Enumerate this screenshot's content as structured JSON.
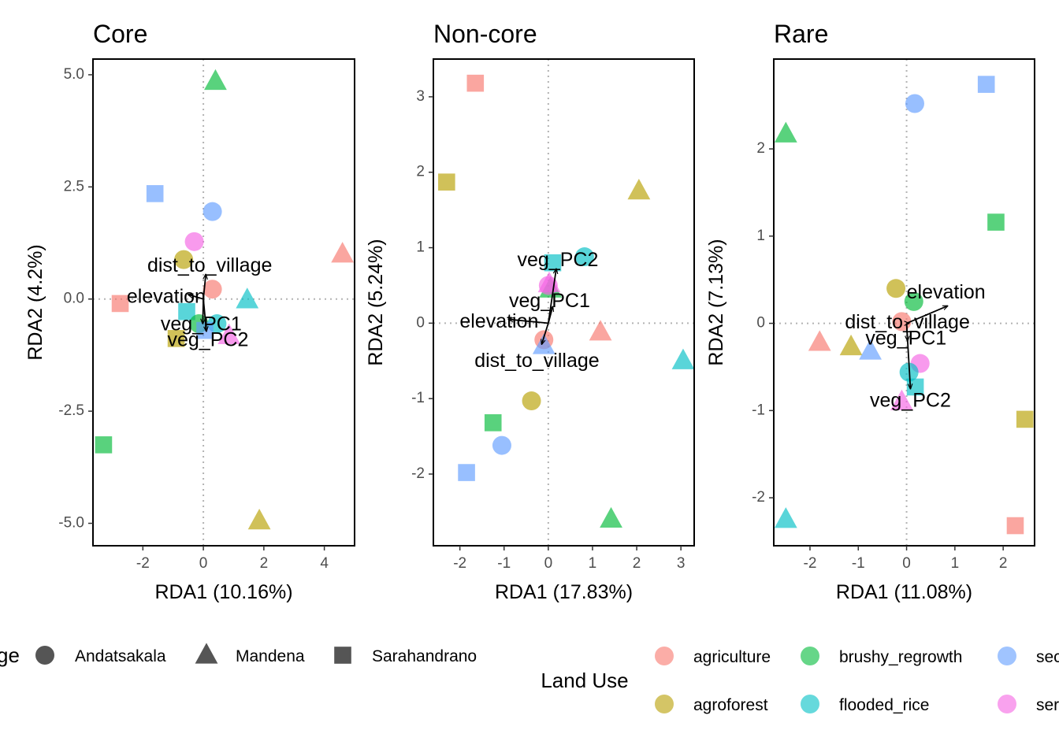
{
  "chart_data": [
    {
      "type": "scatter",
      "title": "Core",
      "xlabel": "RDA1 (10.16%)",
      "ylabel": "RDA2 (4.2%)",
      "xlim": [
        -3.65,
        5.0
      ],
      "ylim": [
        -5.5,
        5.35
      ],
      "xticks": [
        -2,
        0,
        2,
        4
      ],
      "xtick_labels": [
        "-2",
        "0",
        "2",
        "4"
      ],
      "yticks": [
        -5,
        -2.5,
        0,
        2.5,
        5
      ],
      "ytick_labels": [
        "-5.0",
        "-2.5",
        "0.0",
        "2.5",
        "5.0"
      ],
      "grid": false,
      "points": [
        {
          "x": 0.4,
          "y": 4.85,
          "site": "Mandena",
          "land_use": "brushy_regrowth"
        },
        {
          "x": 4.6,
          "y": 1.0,
          "site": "Mandena",
          "land_use": "agriculture"
        },
        {
          "x": -1.6,
          "y": 2.35,
          "site": "Sarahandrano",
          "land_use": "secondary_forest"
        },
        {
          "x": 0.3,
          "y": 1.95,
          "site": "Andatsakala",
          "land_use": "secondary_forest"
        },
        {
          "x": -0.3,
          "y": 1.28,
          "site": "Andatsakala",
          "land_use": "semi_intact"
        },
        {
          "x": -0.65,
          "y": 0.88,
          "site": "Andatsakala",
          "land_use": "agroforest"
        },
        {
          "x": 0.3,
          "y": 0.22,
          "site": "Andatsakala",
          "land_use": "agriculture"
        },
        {
          "x": -2.75,
          "y": -0.1,
          "site": "Sarahandrano",
          "land_use": "agriculture"
        },
        {
          "x": 1.45,
          "y": -0.02,
          "site": "Mandena",
          "land_use": "flooded_rice"
        },
        {
          "x": -0.55,
          "y": -0.28,
          "site": "Sarahandrano",
          "land_use": "flooded_rice"
        },
        {
          "x": -0.15,
          "y": -0.55,
          "site": "Andatsakala",
          "land_use": "brushy_regrowth"
        },
        {
          "x": 0.45,
          "y": -0.55,
          "site": "Andatsakala",
          "land_use": "flooded_rice"
        },
        {
          "x": 0.05,
          "y": -0.7,
          "site": "Sarahandrano",
          "land_use": "secondary_forest"
        },
        {
          "x": 0.85,
          "y": -0.82,
          "site": "Mandena",
          "land_use": "semi_intact"
        },
        {
          "x": -0.9,
          "y": -0.88,
          "site": "Sarahandrano",
          "land_use": "agroforest"
        },
        {
          "x": -3.3,
          "y": -3.25,
          "site": "Sarahandrano",
          "land_use": "brushy_regrowth"
        },
        {
          "x": 1.85,
          "y": -4.95,
          "site": "Mandena",
          "land_use": "agroforest"
        }
      ],
      "vectors": [
        {
          "label": "dist_to_village",
          "x": 0.08,
          "y": 0.55
        },
        {
          "label": "elevation",
          "x": -0.5,
          "y": 0.1
        },
        {
          "label": "veg_PC1",
          "x": -0.02,
          "y": -0.55
        },
        {
          "label": "veg_PC2",
          "x": 0.1,
          "y": -0.72
        }
      ]
    },
    {
      "type": "scatter",
      "title": "Non-core",
      "xlabel": "RDA1 (17.83%)",
      "ylabel": "RDA2 (5.24%)",
      "xlim": [
        -2.6,
        3.3
      ],
      "ylim": [
        -2.95,
        3.5
      ],
      "xticks": [
        -2,
        -1,
        0,
        1,
        2,
        3
      ],
      "xtick_labels": [
        "-2",
        "-1",
        "0",
        "1",
        "2",
        "3"
      ],
      "yticks": [
        -2,
        -1,
        0,
        1,
        2,
        3
      ],
      "ytick_labels": [
        "-2",
        "-1",
        "0",
        "1",
        "2",
        "3"
      ],
      "grid": false,
      "points": [
        {
          "x": -1.65,
          "y": 3.18,
          "site": "Sarahandrano",
          "land_use": "agriculture"
        },
        {
          "x": -2.3,
          "y": 1.87,
          "site": "Sarahandrano",
          "land_use": "agroforest"
        },
        {
          "x": 2.05,
          "y": 1.75,
          "site": "Mandena",
          "land_use": "agroforest"
        },
        {
          "x": 0.82,
          "y": 0.88,
          "site": "Andatsakala",
          "land_use": "flooded_rice"
        },
        {
          "x": 0.1,
          "y": 0.8,
          "site": "Sarahandrano",
          "land_use": "flooded_rice"
        },
        {
          "x": 0.05,
          "y": 0.45,
          "site": "Mandena",
          "land_use": "brushy_regrowth"
        },
        {
          "x": 0.0,
          "y": 0.5,
          "site": "Andatsakala",
          "land_use": "semi_intact"
        },
        {
          "x": 0.02,
          "y": 0.52,
          "site": "Mandena",
          "land_use": "semi_intact"
        },
        {
          "x": 1.18,
          "y": -0.12,
          "site": "Mandena",
          "land_use": "agriculture"
        },
        {
          "x": -0.1,
          "y": -0.22,
          "site": "Andatsakala",
          "land_use": "agriculture"
        },
        {
          "x": -0.1,
          "y": -0.3,
          "site": "Mandena",
          "land_use": "secondary_forest"
        },
        {
          "x": 3.05,
          "y": -0.5,
          "site": "Mandena",
          "land_use": "flooded_rice"
        },
        {
          "x": -0.38,
          "y": -1.03,
          "site": "Andatsakala",
          "land_use": "agroforest"
        },
        {
          "x": -1.25,
          "y": -1.32,
          "site": "Sarahandrano",
          "land_use": "brushy_regrowth"
        },
        {
          "x": -1.05,
          "y": -1.62,
          "site": "Andatsakala",
          "land_use": "secondary_forest"
        },
        {
          "x": -1.85,
          "y": -1.98,
          "site": "Sarahandrano",
          "land_use": "secondary_forest"
        },
        {
          "x": 1.42,
          "y": -2.6,
          "site": "Mandena",
          "land_use": "brushy_regrowth"
        }
      ],
      "vectors": [
        {
          "label": "veg_PC2",
          "x": 0.18,
          "y": 0.72
        },
        {
          "label": "veg_PC1",
          "x": 0.1,
          "y": 0.22
        },
        {
          "label": "elevation",
          "x": -0.9,
          "y": 0.05
        },
        {
          "label": "dist_to_village",
          "x": -0.15,
          "y": -0.28
        }
      ]
    },
    {
      "type": "scatter",
      "title": "Rare",
      "xlabel": "RDA1 (11.08%)",
      "ylabel": "RDA2 (7.13%)",
      "xlim": [
        -2.75,
        2.65
      ],
      "ylim": [
        -2.55,
        3.03
      ],
      "xticks": [
        -2,
        -1,
        0,
        1,
        2
      ],
      "xtick_labels": [
        "-2",
        "-1",
        "0",
        "1",
        "2"
      ],
      "yticks": [
        -2,
        -1,
        0,
        1,
        2
      ],
      "ytick_labels": [
        "-2",
        "-1",
        "0",
        "1",
        "2"
      ],
      "grid": false,
      "points": [
        {
          "x": 0.17,
          "y": 2.52,
          "site": "Andatsakala",
          "land_use": "secondary_forest"
        },
        {
          "x": 1.65,
          "y": 2.74,
          "site": "Sarahandrano",
          "land_use": "secondary_forest"
        },
        {
          "x": -2.5,
          "y": 2.17,
          "site": "Mandena",
          "land_use": "brushy_regrowth"
        },
        {
          "x": 1.85,
          "y": 1.16,
          "site": "Sarahandrano",
          "land_use": "brushy_regrowth"
        },
        {
          "x": -0.22,
          "y": 0.4,
          "site": "Andatsakala",
          "land_use": "agroforest"
        },
        {
          "x": 0.15,
          "y": 0.25,
          "site": "Andatsakala",
          "land_use": "brushy_regrowth"
        },
        {
          "x": -0.1,
          "y": 0.02,
          "site": "Andatsakala",
          "land_use": "agriculture"
        },
        {
          "x": -1.8,
          "y": -0.22,
          "site": "Mandena",
          "land_use": "agriculture"
        },
        {
          "x": -1.15,
          "y": -0.27,
          "site": "Mandena",
          "land_use": "agroforest"
        },
        {
          "x": -0.75,
          "y": -0.32,
          "site": "Mandena",
          "land_use": "secondary_forest"
        },
        {
          "x": 0.28,
          "y": -0.46,
          "site": "Andatsakala",
          "land_use": "semi_intact"
        },
        {
          "x": 0.05,
          "y": -0.56,
          "site": "Andatsakala",
          "land_use": "flooded_rice"
        },
        {
          "x": 0.18,
          "y": -0.73,
          "site": "Sarahandrano",
          "land_use": "flooded_rice"
        },
        {
          "x": -0.1,
          "y": -0.9,
          "site": "Mandena",
          "land_use": "semi_intact"
        },
        {
          "x": 2.45,
          "y": -1.1,
          "site": "Sarahandrano",
          "land_use": "agroforest"
        },
        {
          "x": -2.5,
          "y": -2.25,
          "site": "Mandena",
          "land_use": "flooded_rice"
        },
        {
          "x": 2.25,
          "y": -2.32,
          "site": "Sarahandrano",
          "land_use": "agriculture"
        }
      ],
      "vectors": [
        {
          "label": "elevation",
          "x": 0.85,
          "y": 0.2
        },
        {
          "label": "dist_to_village",
          "x": 0.05,
          "y": 0.0
        },
        {
          "label": "veg_PC1",
          "x": 0.02,
          "y": -0.2
        },
        {
          "label": "veg_PC2",
          "x": 0.08,
          "y": -0.75
        }
      ]
    }
  ],
  "legend": {
    "placement": "bottom",
    "site": {
      "title_visible": "ge",
      "entries": [
        {
          "label": "Andatsakala",
          "shape": "circle"
        },
        {
          "label": "Mandena",
          "shape": "triangle"
        },
        {
          "label": "Sarahandrano",
          "shape": "square"
        }
      ]
    },
    "land_use": {
      "title": "Land Use",
      "entries": [
        {
          "label": "agriculture",
          "key": "agriculture",
          "color": "#F8766D"
        },
        {
          "label": "brushy_regrowth",
          "key": "brushy_regrowth",
          "color": "#00BA38"
        },
        {
          "label": "sec",
          "key": "secondary_forest",
          "color": "#619CFF"
        },
        {
          "label": "agroforest",
          "key": "agroforest",
          "color": "#B79F00"
        },
        {
          "label": "flooded_rice",
          "key": "flooded_rice",
          "color": "#00BFC4"
        },
        {
          "label": "ser",
          "key": "semi_intact",
          "color": "#F564E3"
        }
      ]
    }
  },
  "colors": {
    "agriculture": "#F8766D",
    "agroforest": "#B79F00",
    "brushy_regrowth": "#00BA38",
    "flooded_rice": "#00BFC4",
    "secondary_forest": "#619CFF",
    "semi_intact": "#F564E3",
    "shape_legend": "#555555",
    "axis_frame": "#000000",
    "zero_line": "#b3b3b3"
  }
}
